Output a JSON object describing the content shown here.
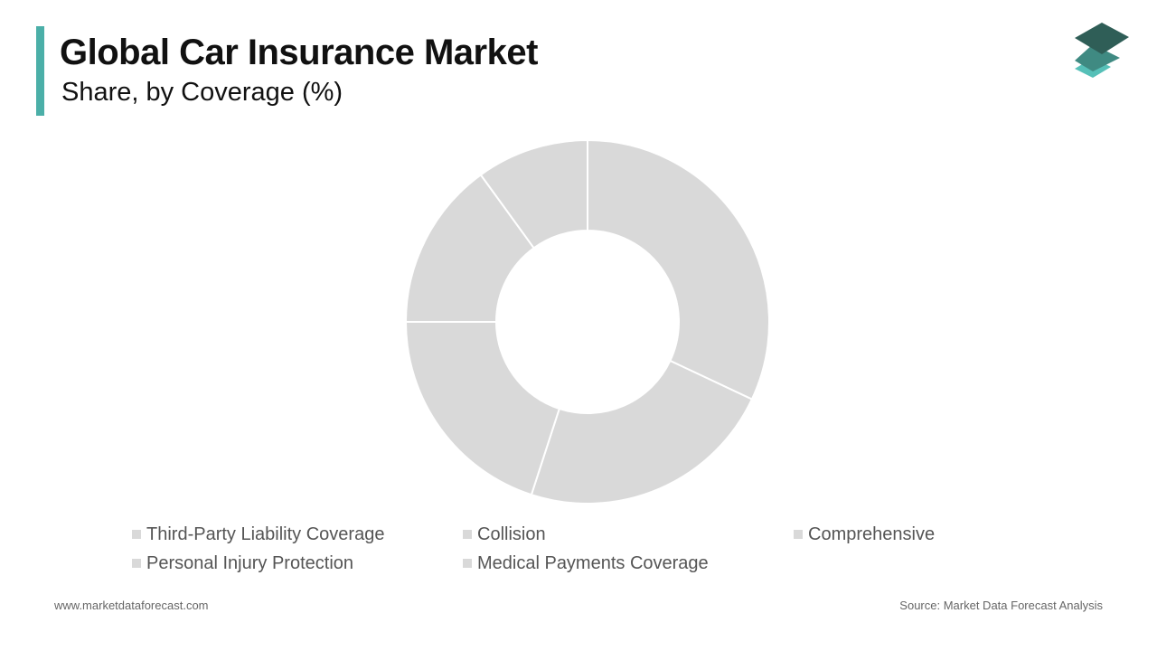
{
  "header": {
    "title": "Global Car Insurance Market",
    "subtitle": "Share, by Coverage (%)"
  },
  "colors": {
    "accent_bar": "#4bafa8",
    "slice_fill": "#d9d9d9",
    "slice_border": "#ffffff",
    "legend_swatch": "#d9d9d9",
    "logo_top": "#2f5e57",
    "logo_middle": "#3f8a82",
    "logo_bottom": "#56c0b8"
  },
  "logo": {
    "icon": "stacked-layers-icon"
  },
  "chart_data": {
    "type": "pie",
    "style": "donut",
    "categories": [
      "Third-Party Liability Coverage",
      "Collision",
      "Comprehensive",
      "Personal Injury Protection",
      "Medical Payments Coverage"
    ],
    "values": [
      32,
      23,
      20,
      15,
      10
    ],
    "unit": "%",
    "legend_position": "bottom"
  },
  "legend": {
    "items": [
      "Third-Party Liability Coverage",
      "Collision",
      "Comprehensive",
      "Personal Injury Protection",
      "Medical Payments Coverage"
    ]
  },
  "footer": {
    "website": "www.marketdataforecast.com",
    "source": "Source: Market Data Forecast Analysis"
  }
}
